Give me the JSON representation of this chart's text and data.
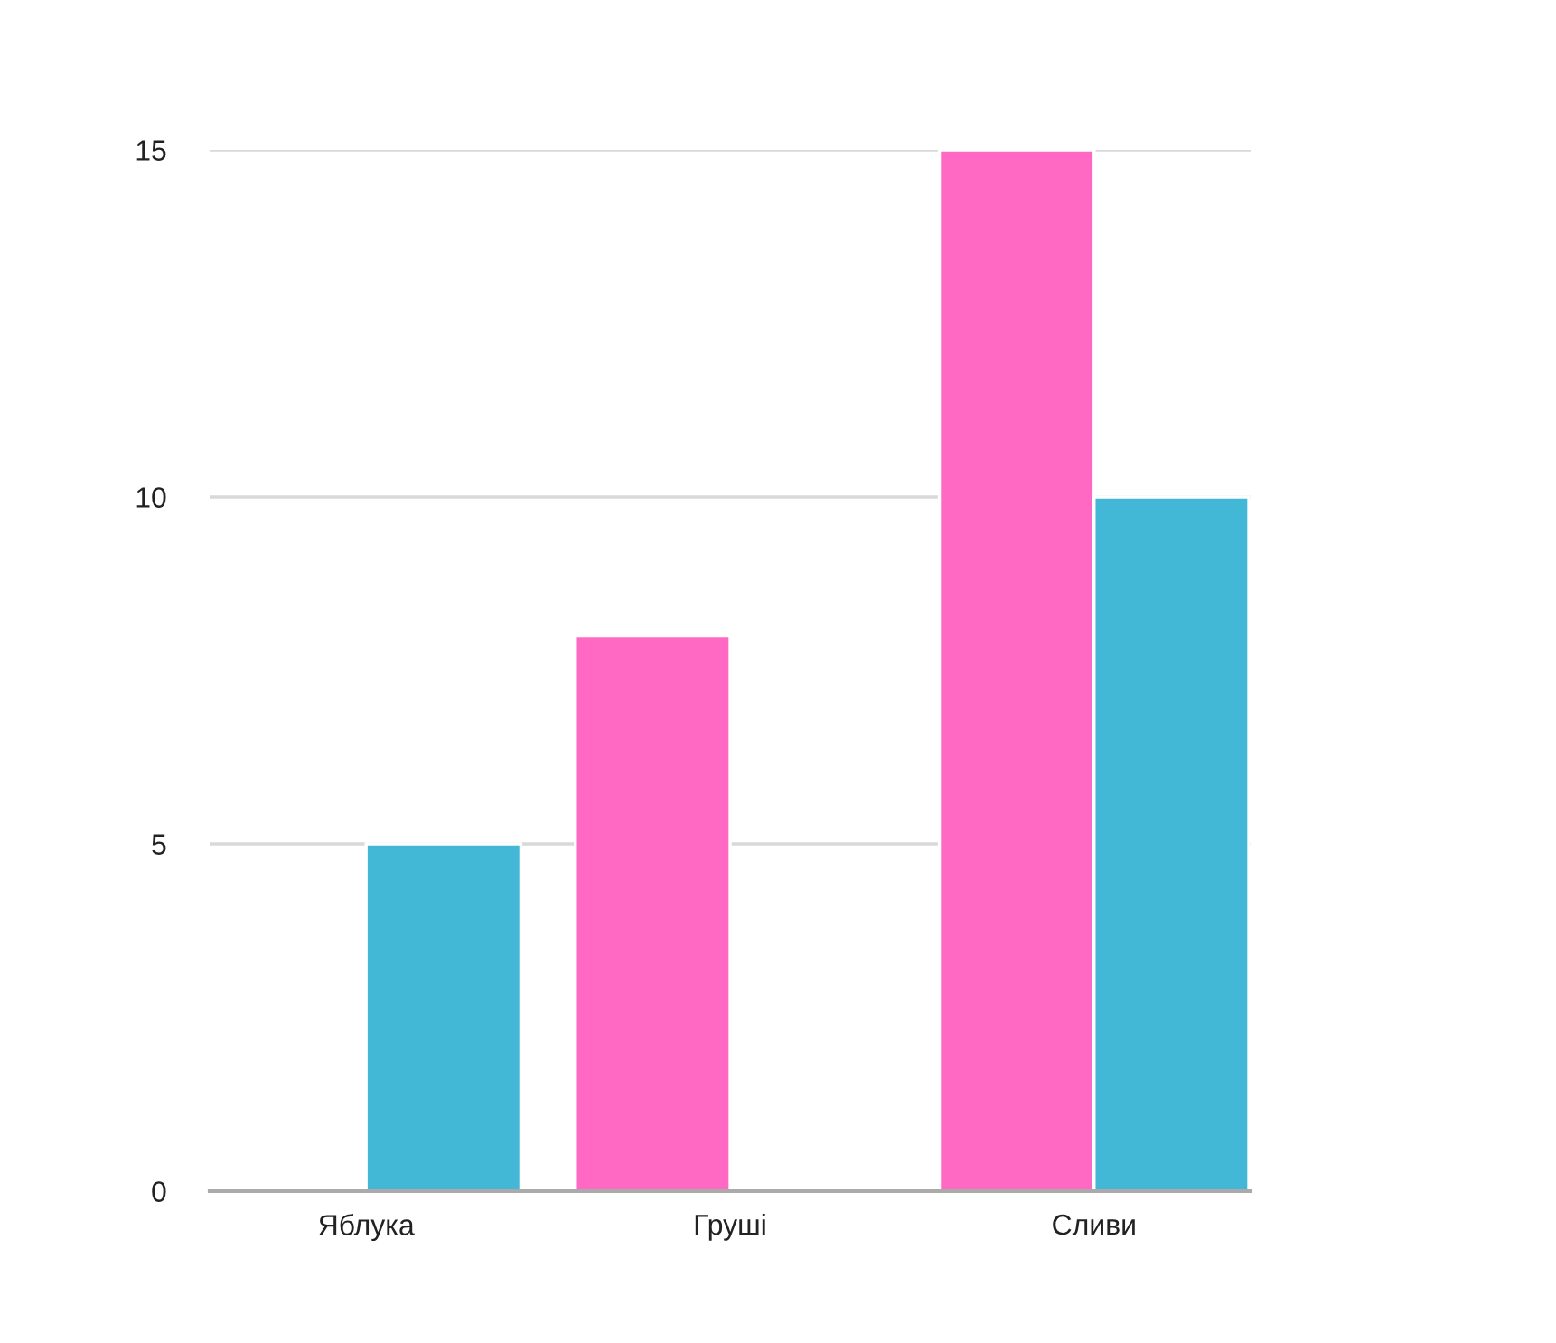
{
  "chart_data": {
    "type": "bar",
    "categories": [
      "Яблука",
      "Груші",
      "Сливи"
    ],
    "series": [
      {
        "color": "#ff69c4",
        "values": [
          null,
          8,
          15
        ]
      },
      {
        "color": "#42b8d6",
        "values": [
          5,
          null,
          10
        ]
      }
    ],
    "ylim": [
      0,
      15
    ],
    "yticks": [
      0,
      5,
      10,
      15
    ],
    "grid": "y"
  }
}
